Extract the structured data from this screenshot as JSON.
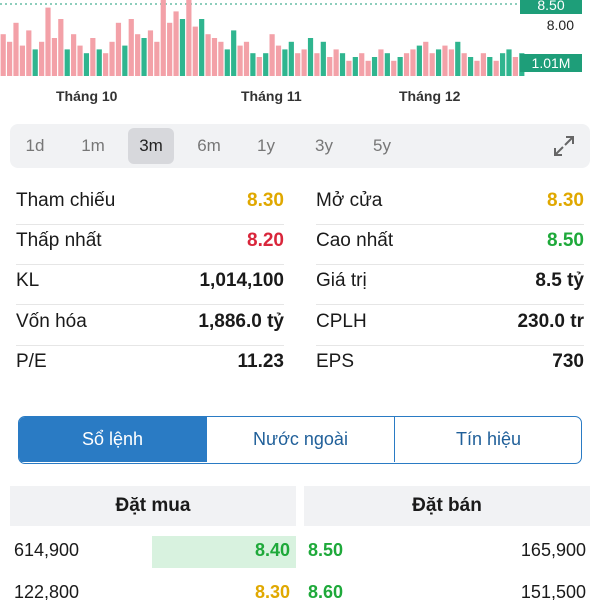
{
  "chart": {
    "price_tag": "8.50",
    "price_plain": "8.00",
    "volume_tag": "1.01M",
    "months": [
      "Tháng 10",
      "Tháng 11",
      "Tháng 12"
    ],
    "colors": {
      "up": "#2fb58f",
      "down": "#f3a1a8",
      "tag": "#1e9e79"
    }
  },
  "chart_data": {
    "type": "bar",
    "xlabel": "",
    "ylabel": "",
    "volumes": [
      0.55,
      0.45,
      0.7,
      0.4,
      0.6,
      0.35,
      0.45,
      0.9,
      0.5,
      0.75,
      0.35,
      0.55,
      0.4,
      0.3,
      0.5,
      0.35,
      0.3,
      0.45,
      0.7,
      0.4,
      0.75,
      0.55,
      0.5,
      0.6,
      0.45,
      1.0,
      0.7,
      0.85,
      0.75,
      1.0,
      0.65,
      0.75,
      0.55,
      0.5,
      0.45,
      0.35,
      0.6,
      0.4,
      0.45,
      0.3,
      0.25,
      0.3,
      0.55,
      0.4,
      0.35,
      0.45,
      0.3,
      0.35,
      0.5,
      0.3,
      0.45,
      0.25,
      0.35,
      0.3,
      0.2,
      0.25,
      0.3,
      0.2,
      0.25,
      0.35,
      0.3,
      0.2,
      0.25,
      0.3,
      0.35,
      0.4,
      0.45,
      0.3,
      0.35,
      0.4,
      0.35,
      0.45,
      0.3,
      0.25,
      0.2,
      0.3,
      0.25,
      0.2,
      0.3,
      0.35,
      0.25,
      0.3
    ],
    "up": [
      0,
      0,
      0,
      0,
      0,
      1,
      0,
      0,
      0,
      0,
      1,
      0,
      0,
      1,
      0,
      1,
      0,
      0,
      0,
      1,
      0,
      0,
      1,
      0,
      0,
      0,
      0,
      0,
      1,
      0,
      0,
      1,
      0,
      0,
      0,
      1,
      1,
      0,
      0,
      1,
      0,
      1,
      0,
      0,
      1,
      1,
      0,
      0,
      1,
      0,
      1,
      0,
      0,
      1,
      0,
      1,
      0,
      0,
      1,
      0,
      1,
      0,
      1,
      0,
      0,
      1,
      0,
      0,
      1,
      0,
      0,
      1,
      0,
      1,
      0,
      0,
      1,
      0,
      1,
      1,
      0,
      1
    ]
  },
  "range_tabs": [
    "1d",
    "1m",
    "3m",
    "6m",
    "1y",
    "3y",
    "5y"
  ],
  "range_active": "3m",
  "stats": [
    {
      "left_label": "Tham chiếu",
      "left_value": "8.30",
      "left_color": "#e0a800",
      "right_label": "Mở cửa",
      "right_value": "8.30",
      "right_color": "#e0a800"
    },
    {
      "left_label": "Thấp nhất",
      "left_value": "8.20",
      "left_color": "#d9263b",
      "right_label": "Cao nhất",
      "right_value": "8.50",
      "right_color": "#1ea93a"
    },
    {
      "left_label": "KL",
      "left_value": "1,014,100",
      "left_color": "#1a1a1a",
      "right_label": "Giá trị",
      "right_value": "8.5 tỷ",
      "right_color": "#1a1a1a"
    },
    {
      "left_label": "Vốn hóa",
      "left_value": "1,886.0 tỷ",
      "left_color": "#1a1a1a",
      "right_label": "CPLH",
      "right_value": "230.0 tr",
      "right_color": "#1a1a1a"
    },
    {
      "left_label": "P/E",
      "left_value": "11.23",
      "left_color": "#1a1a1a",
      "right_label": "EPS",
      "right_value": "730",
      "right_color": "#1a1a1a"
    }
  ],
  "segment_tabs": [
    "Sổ lệnh",
    "Nước ngoài",
    "Tín hiệu"
  ],
  "order_book": {
    "buy_header": "Đặt mua",
    "sell_header": "Đặt bán",
    "rows": [
      {
        "buy_vol": "614,900",
        "buy_price": "8.40",
        "buy_color": "#1ea93a",
        "sell_price": "8.50",
        "sell_color": "#1ea93a",
        "sell_vol": "165,900"
      },
      {
        "buy_vol": "122,800",
        "buy_price": "8.30",
        "buy_color": "#e0a800",
        "sell_price": "8.60",
        "sell_color": "#1ea93a",
        "sell_vol": "151,500"
      }
    ]
  }
}
